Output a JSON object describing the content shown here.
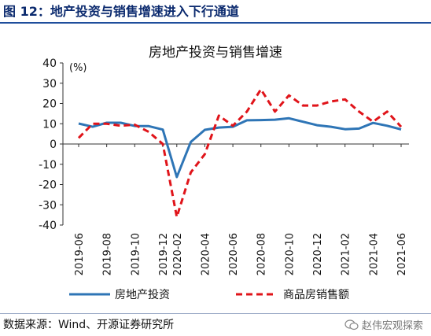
{
  "figure": {
    "title": "图 12：地产投资与销售增速进入下行通道",
    "source": "数据来源：Wind、开源证券研究所",
    "watermark": "赵伟宏观探索",
    "watermark_icon": "wechat-icon"
  },
  "chart_data": {
    "type": "line",
    "title": "房地产投资与销售增速",
    "ylabel": "(%)",
    "ylim": [
      -40,
      40
    ],
    "yticks": [
      40,
      30,
      20,
      10,
      0,
      -10,
      -20,
      -30,
      -40
    ],
    "grid": false,
    "legend_position": "bottom",
    "x": [
      "2019-06",
      "2019-07",
      "2019-08",
      "2019-09",
      "2019-10",
      "2019-11",
      "2019-12",
      "2020-02",
      "2020-03",
      "2020-04",
      "2020-05",
      "2020-06",
      "2020-07",
      "2020-08",
      "2020-09",
      "2020-10",
      "2020-11",
      "2020-12",
      "2021-01",
      "2021-02",
      "2021-03",
      "2021-04",
      "2021-05",
      "2021-06"
    ],
    "xtick_labels": [
      "2019-06",
      "2019-08",
      "2019-10",
      "2019-12",
      "2020-02",
      "2020-04",
      "2020-06",
      "2020-08",
      "2020-10",
      "2020-12",
      "2021-02",
      "2021-04",
      "2021-06"
    ],
    "series": [
      {
        "name": "房地产投资",
        "color": "#2e75b6",
        "style": "solid",
        "values": [
          10.1,
          8.5,
          10.5,
          10.5,
          8.9,
          8.8,
          7.1,
          -16.3,
          1.0,
          7.0,
          8.1,
          8.5,
          11.7,
          11.8,
          12.0,
          12.7,
          11.0,
          9.3,
          8.5,
          7.3,
          7.6,
          10.4,
          9.0,
          7.2
        ]
      },
      {
        "name": "商品房销售额",
        "color": "#e0141a",
        "style": "dashed",
        "values": [
          3.0,
          10.0,
          10.0,
          9.0,
          9.5,
          6.0,
          0.0,
          -36.0,
          -14.0,
          -5.0,
          14.0,
          9.0,
          16.0,
          27.0,
          16.0,
          24.0,
          19.0,
          19.0,
          21.0,
          22.0,
          16.0,
          11.0,
          16.0,
          8.5
        ]
      }
    ]
  }
}
